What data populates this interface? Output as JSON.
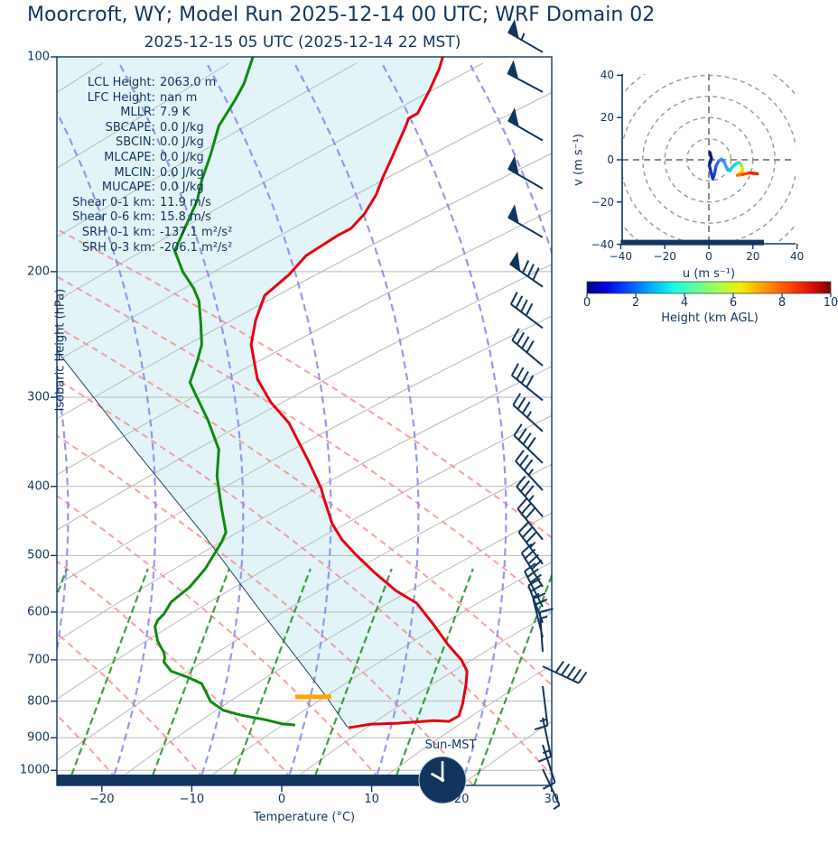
{
  "title": "Moorcroft, WY; Model Run 2025-12-14 00 UTC; WRF Domain 02",
  "subtitle": "2025-12-15 05 UTC  (2025-12-14 22 MST)",
  "colors": {
    "navy": "#11355e",
    "temperature": "#e60011",
    "dewpoint": "#0f8a0f",
    "parcel": "#26435f",
    "lcl_marker": "#ffa500",
    "shading": "#e2f4f7",
    "grid_gray": "#b9b9b9",
    "dry_adiabat": "#f58a8a",
    "moist_adiabat": "#8585ef",
    "mixing_ratio": "#1d8f1d",
    "hodo_grid": "#999999"
  },
  "skewt": {
    "xlabel": "Temperature (°C)",
    "ylabel": "Isobaric Height (hPa)",
    "x_ticks": [
      -20,
      -10,
      0,
      10,
      20,
      30
    ],
    "p_ticks": [
      100,
      200,
      300,
      400,
      500,
      600,
      700,
      800,
      900,
      1000
    ],
    "sun_label": "Sun-MST",
    "stats": [
      {
        "label": "LCL Height:",
        "value": "2063.0 m"
      },
      {
        "label": "LFC Height:",
        "value": "nan m"
      },
      {
        "label": "MLLR:",
        "value": "7.9 K"
      },
      {
        "label": "SBCAPE:",
        "value": "0.0 J/kg"
      },
      {
        "label": "SBCIN:",
        "value": "0.0 J/kg"
      },
      {
        "label": "MLCAPE:",
        "value": "0.0 J/kg"
      },
      {
        "label": "MLCIN:",
        "value": "0.0 J/kg"
      },
      {
        "label": "MUCAPE:",
        "value": "0.0 J/kg"
      },
      {
        "label": "Shear 0-1 km:",
        "value": "11.9 m/s"
      },
      {
        "label": "Shear 0-6 km:",
        "value": "15.8 m/s"
      },
      {
        "label": "SRH 0-1 km:",
        "value": "-137.1 m²/s²"
      },
      {
        "label": "SRH 0-3 km:",
        "value": "-206.1 m²/s²"
      }
    ]
  },
  "hodograph": {
    "xlabel": "u (m s⁻¹)",
    "ylabel": "v (m s⁻¹)",
    "x_ticks": [
      -40,
      -20,
      0,
      20,
      40
    ],
    "y_ticks": [
      40,
      20,
      0,
      -20,
      -40
    ],
    "ring_radii": [
      10,
      20,
      30,
      40,
      50
    ]
  },
  "colorbar": {
    "label": "Height (km AGL)",
    "ticks": [
      0,
      2,
      4,
      6,
      8,
      10
    ],
    "gradient": [
      [
        "0%",
        "#00007f"
      ],
      [
        "8%",
        "#0000e0"
      ],
      [
        "17%",
        "#0050ff"
      ],
      [
        "27%",
        "#00b4ff"
      ],
      [
        "36%",
        "#18ffe0"
      ],
      [
        "45%",
        "#60ff97"
      ],
      [
        "54%",
        "#a8ff50"
      ],
      [
        "63%",
        "#f0f000"
      ],
      [
        "72%",
        "#ffa000"
      ],
      [
        "82%",
        "#ff5000"
      ],
      [
        "91%",
        "#e81300"
      ],
      [
        "100%",
        "#7f0000"
      ]
    ]
  },
  "chart_data": [
    {
      "id": "skewt_sounding",
      "type": "line",
      "title": "Moorcroft, WY; Model Run 2025-12-14 00 UTC; WRF Domain 02",
      "subtitle": "2025-12-15 05 UTC  (2025-12-14 22 MST)",
      "xlabel": "Temperature (°C)",
      "ylabel": "Isobaric Height (hPa)",
      "xlim": [
        -25,
        30
      ],
      "ylim": [
        1050,
        100
      ],
      "y_scale": "log",
      "note": "points are [display_temperature_degC_on_skewed_axis, pressure_hPa]",
      "series": [
        {
          "name": "temperature",
          "points": [
            [
              17.9,
              100
            ],
            [
              17.5,
              104
            ],
            [
              16.5,
              111
            ],
            [
              15.1,
              120
            ],
            [
              14.1,
              122
            ],
            [
              13.8,
              125
            ],
            [
              13.2,
              130
            ],
            [
              12.3,
              138
            ],
            [
              11.3,
              147
            ],
            [
              10.5,
              156
            ],
            [
              9.2,
              166
            ],
            [
              7.7,
              174
            ],
            [
              6.2,
              178
            ],
            [
              2.7,
              190
            ],
            [
              0.8,
              202
            ],
            [
              -1.9,
              216
            ],
            [
              -2.9,
              234
            ],
            [
              -3.4,
              253
            ],
            [
              -2.7,
              283
            ],
            [
              -1.2,
              305
            ],
            [
              0.8,
              326
            ],
            [
              1.9,
              347
            ],
            [
              2.9,
              367
            ],
            [
              4.4,
              403
            ],
            [
              4.7,
              416
            ],
            [
              5.6,
              451
            ],
            [
              6.7,
              475
            ],
            [
              8.2,
              498
            ],
            [
              10.3,
              528
            ],
            [
              12.7,
              560
            ],
            [
              15.0,
              583
            ],
            [
              16.8,
              623
            ],
            [
              18.5,
              667
            ],
            [
              20.0,
              701
            ],
            [
              20.6,
              726
            ],
            [
              20.5,
              756
            ],
            [
              20.1,
              808
            ],
            [
              19.7,
              839
            ],
            [
              18.6,
              854
            ],
            [
              16.9,
              852
            ],
            [
              12.9,
              859
            ],
            [
              9.8,
              862
            ],
            [
              7.4,
              872
            ]
          ]
        },
        {
          "name": "dewpoint",
          "points": [
            [
              -3.2,
              100
            ],
            [
              -4.2,
              109
            ],
            [
              -5.2,
              115
            ],
            [
              -7.0,
              125
            ],
            [
              -7.9,
              137
            ],
            [
              -8.9,
              149
            ],
            [
              -9.4,
              159
            ],
            [
              -10.7,
              173
            ],
            [
              -11.9,
              187
            ],
            [
              -11.0,
              200
            ],
            [
              -9.8,
              211
            ],
            [
              -9.2,
              220
            ],
            [
              -9.0,
              237
            ],
            [
              -8.9,
              253
            ],
            [
              -9.4,
              267
            ],
            [
              -10.2,
              286
            ],
            [
              -9.6,
              297
            ],
            [
              -8.2,
              323
            ],
            [
              -7.0,
              355
            ],
            [
              -7.2,
              387
            ],
            [
              -6.7,
              429
            ],
            [
              -6.2,
              464
            ],
            [
              -6.7,
              479
            ],
            [
              -7.9,
              507
            ],
            [
              -8.5,
              522
            ],
            [
              -10.2,
              553
            ],
            [
              -12.3,
              581
            ],
            [
              -13.1,
              604
            ],
            [
              -13.8,
              616
            ],
            [
              -14.1,
              629
            ],
            [
              -13.8,
              659
            ],
            [
              -13.1,
              684
            ],
            [
              -13.0,
              694
            ],
            [
              -13.1,
              705
            ],
            [
              -12.3,
              726
            ],
            [
              -10.4,
              741
            ],
            [
              -8.9,
              756
            ],
            [
              -8.4,
              778
            ],
            [
              -7.9,
              801
            ],
            [
              -6.5,
              824
            ],
            [
              -4.5,
              837
            ],
            [
              -1.9,
              849
            ],
            [
              0.1,
              861
            ],
            [
              1.5,
              864
            ]
          ]
        },
        {
          "name": "parcel",
          "points": [
            [
              -25.0,
              258
            ],
            [
              -16.3,
              356
            ],
            [
              -8.7,
              467
            ],
            [
              -2.7,
              590
            ],
            [
              1.8,
              699
            ],
            [
              5.0,
              790
            ],
            [
              7.3,
              870
            ]
          ]
        }
      ],
      "lcl_marker": {
        "pressure": 789,
        "t_from": 1.5,
        "t_to": 5.5
      },
      "daylight_bar": {
        "t_from": -25,
        "t_to": 16.6
      },
      "clock": {
        "label": "Sun-MST",
        "hour_angle_deg": 300,
        "minute_angle_deg": 0
      },
      "wind_barbs": {
        "note": "[pressure_hPa, staff_angle_deg, flags, full_barbs, half_barbs, flip_side]",
        "list": [
          [
            98.5,
            150,
            1,
            0,
            1,
            0
          ],
          [
            112,
            152,
            1,
            0,
            0,
            0
          ],
          [
            131,
            150,
            1,
            0,
            0,
            0
          ],
          [
            153,
            150,
            1,
            0,
            0,
            0
          ],
          [
            179,
            150,
            1,
            0,
            0,
            0
          ],
          [
            210,
            145,
            1,
            3,
            0,
            0
          ],
          [
            240,
            143,
            0,
            4,
            0,
            0
          ],
          [
            271,
            140,
            0,
            4,
            0,
            0
          ],
          [
            303,
            141,
            0,
            4,
            0,
            0
          ],
          [
            335,
            138,
            0,
            3,
            1,
            0
          ],
          [
            371,
            136,
            0,
            4,
            0,
            0
          ],
          [
            405,
            133,
            0,
            3,
            1,
            0
          ],
          [
            441,
            131,
            0,
            3,
            1,
            0
          ],
          [
            475,
            129,
            0,
            3,
            0,
            0
          ],
          [
            514,
            127,
            0,
            3,
            1,
            0
          ],
          [
            553,
            122,
            0,
            4,
            0,
            0
          ],
          [
            590,
            117,
            0,
            3,
            0,
            0
          ],
          [
            621,
            111,
            0,
            2,
            1,
            0
          ],
          [
            651,
            104,
            0,
            2,
            0,
            0
          ],
          [
            682,
            94,
            0,
            1,
            1,
            0
          ],
          [
            715,
            -25,
            0,
            5,
            0,
            1
          ],
          [
            762,
            -83,
            0,
            1,
            1,
            0
          ],
          [
            844,
            -78,
            0,
            1,
            1,
            0
          ],
          [
            921,
            -72,
            0,
            1,
            0,
            0
          ],
          [
            996,
            -65,
            0,
            0,
            1,
            0
          ]
        ]
      }
    },
    {
      "id": "hodograph_trace",
      "type": "line",
      "xlabel": "u (m s⁻¹)",
      "ylabel": "v (m s⁻¹)",
      "xlim": [
        -40,
        40
      ],
      "ylim": [
        -40,
        40
      ],
      "colored_by": "Height (km AGL), jet colormap 0-10 km",
      "points": [
        {
          "u": 0.5,
          "v": 3.5,
          "c": "#0b1d78"
        },
        {
          "u": 1.2,
          "v": 0.5,
          "c": "#0b1d78"
        },
        {
          "u": 0.2,
          "v": -2.5,
          "c": "#0e2fa0"
        },
        {
          "u": 1.0,
          "v": -6.0,
          "c": "#1133cc"
        },
        {
          "u": 1.8,
          "v": -9.0,
          "c": "#1133cc"
        },
        {
          "u": 2.6,
          "v": -6.5,
          "c": "#1e4fe0"
        },
        {
          "u": 3.2,
          "v": -3.0,
          "c": "#2a66f0"
        },
        {
          "u": 4.5,
          "v": -0.5,
          "c": "#3377ff"
        },
        {
          "u": 5.8,
          "v": 0.3,
          "c": "#3d86ff"
        },
        {
          "u": 7.2,
          "v": -1.5,
          "c": "#3399ff"
        },
        {
          "u": 8.3,
          "v": -4.5,
          "c": "#2fb0f0"
        },
        {
          "u": 9.5,
          "v": -5.2,
          "c": "#25c4e0"
        },
        {
          "u": 11.0,
          "v": -3.0,
          "c": "#12d5d5"
        },
        {
          "u": 12.5,
          "v": -1.8,
          "c": "#00e0c8"
        },
        {
          "u": 13.8,
          "v": -1.2,
          "c": "#55e0a0"
        },
        {
          "u": 14.6,
          "v": -2.2,
          "c": "#9ade4a"
        },
        {
          "u": 15.1,
          "v": -3.8,
          "c": "#d8e820"
        },
        {
          "u": 15.3,
          "v": -5.2,
          "c": "#ffd400"
        },
        {
          "u": 14.2,
          "v": -6.6,
          "c": "#ffa000"
        },
        {
          "u": 13.0,
          "v": -7.3,
          "c": "#ff7000"
        },
        {
          "u": 15.5,
          "v": -6.9,
          "c": "#ff4400"
        },
        {
          "u": 18.5,
          "v": -6.2,
          "c": "#ee2200"
        },
        {
          "u": 22.0,
          "v": -6.6,
          "c": "#cc0000"
        }
      ],
      "baseline_bar": {
        "u_from": -40,
        "u_to": 25,
        "v_at": -40
      }
    }
  ]
}
